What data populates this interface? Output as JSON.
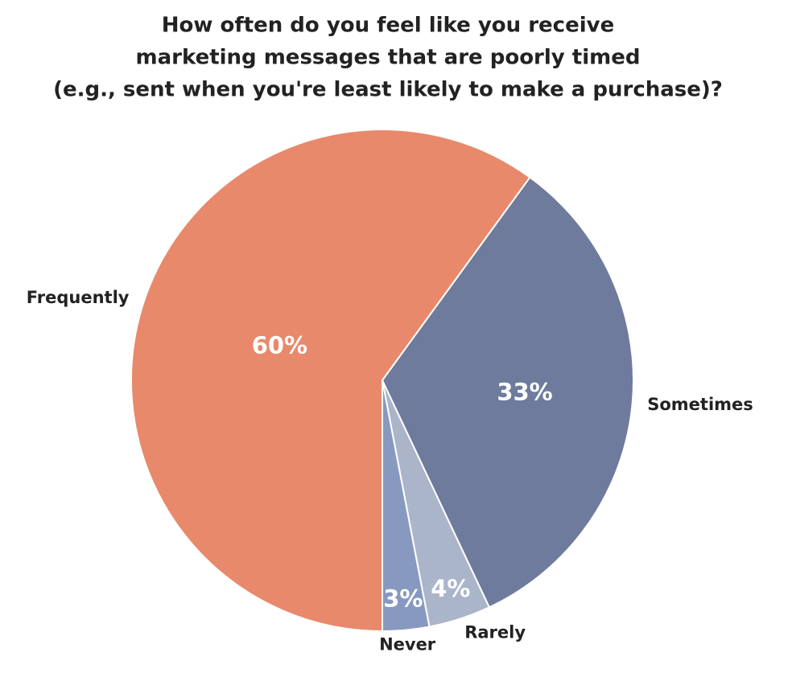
{
  "chart_data": {
    "type": "pie",
    "title": [
      "How often do you feel like you receive",
      "marketing messages that are poorly timed",
      "(e.g., sent when you're least likely to make a purchase)?"
    ],
    "categories": [
      "Frequently",
      "Sometimes",
      "Rarely",
      "Never"
    ],
    "values": [
      60,
      33,
      4,
      3
    ],
    "value_labels": [
      "60%",
      "33%",
      "4%",
      "3%"
    ],
    "colors": [
      "#e8896b",
      "#6e7b9c",
      "#aab5ca",
      "#8899c0"
    ]
  }
}
